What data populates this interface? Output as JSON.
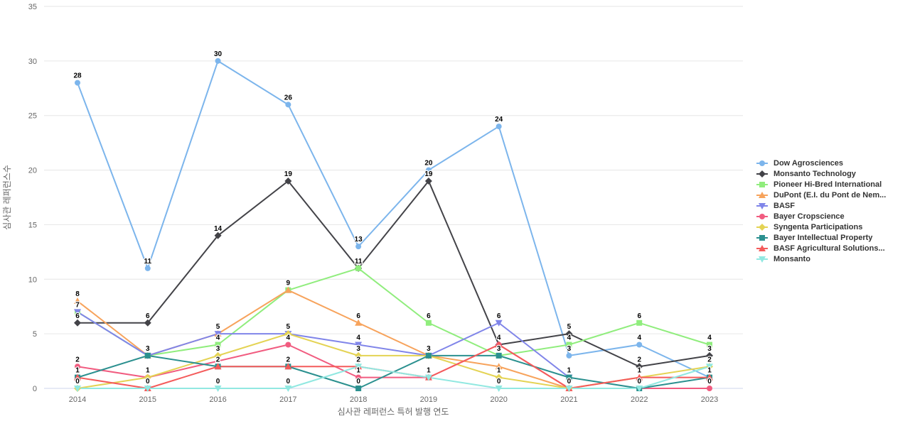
{
  "chart_data": {
    "type": "line",
    "title": "",
    "xlabel": "심사관 레퍼런스 특허 발행 연도",
    "ylabel": "심사관 레퍼런스수",
    "x_categories": [
      "2014",
      "2015",
      "2016",
      "2017",
      "2018",
      "2019",
      "2020",
      "2021",
      "2022",
      "2023"
    ],
    "ylim": [
      0,
      35
    ],
    "y_ticks": [
      "0",
      "5",
      "10",
      "15",
      "20",
      "25",
      "30",
      "35"
    ],
    "grid": true,
    "legend_position": "right",
    "colors": {
      "grid": "#e6e6e6",
      "axis_line": "#ccd6eb",
      "axis_text": "#666666",
      "data_label": "#000000",
      "legend_text": "#333333",
      "background": "#ffffff"
    },
    "series": [
      {
        "name": "Dow Agrosciences",
        "color": "#7cb5ec",
        "marker": "circle",
        "years": [
          2014,
          2015,
          2016,
          2017,
          2018,
          2019,
          2020,
          2021,
          2022,
          2023
        ],
        "values": [
          28,
          11,
          30,
          26,
          13,
          20,
          24,
          3,
          4,
          1
        ],
        "label_visible": [
          1,
          1,
          1,
          1,
          1,
          1,
          1,
          1,
          1,
          1
        ]
      },
      {
        "name": "Monsanto Technology",
        "color": "#434348",
        "marker": "diamond",
        "years": [
          2014,
          2015,
          2016,
          2017,
          2018,
          2019,
          2020,
          2021,
          2022,
          2023
        ],
        "values": [
          6,
          6,
          14,
          19,
          11,
          19,
          4,
          5,
          2,
          3
        ],
        "label_visible": [
          1,
          1,
          1,
          1,
          1,
          1,
          1,
          1,
          1,
          1
        ]
      },
      {
        "name": "Pioneer Hi-Bred International",
        "color": "#90ed7d",
        "marker": "square",
        "years": [
          2014,
          2015,
          2016,
          2017,
          2018,
          2019,
          2020,
          2021,
          2022,
          2023
        ],
        "values": [
          7,
          3,
          4,
          9,
          11,
          6,
          3,
          4,
          6,
          4
        ],
        "label_visible": [
          1,
          1,
          1,
          1,
          0,
          1,
          1,
          1,
          1,
          1
        ]
      },
      {
        "name": "DuPont (E.I. du Pont de Nem...",
        "color": "#f7a35c",
        "marker": "triangle",
        "years": [
          2014,
          2015,
          2016,
          2017,
          2018,
          2019,
          2020,
          2021
        ],
        "values": [
          8,
          3,
          5,
          9,
          6,
          3,
          2,
          0
        ],
        "label_visible": [
          1,
          0,
          1,
          0,
          1,
          1,
          0,
          1
        ]
      },
      {
        "name": "BASF",
        "color": "#8085e9",
        "marker": "triangle-down",
        "years": [
          2014,
          2015,
          2016,
          2017,
          2018,
          2019,
          2020,
          2021
        ],
        "values": [
          7,
          3,
          5,
          5,
          4,
          3,
          6,
          1
        ],
        "label_visible": [
          0,
          0,
          0,
          1,
          1,
          0,
          1,
          1
        ]
      },
      {
        "name": "Bayer Cropscience",
        "color": "#f15c80",
        "marker": "circle",
        "years": [
          2014,
          2015,
          2017,
          2018,
          2019,
          2020,
          2021,
          2022,
          2023
        ],
        "values": [
          2,
          1,
          4,
          1,
          1,
          4,
          0,
          0,
          0
        ],
        "label_visible": [
          1,
          1,
          1,
          1,
          1,
          0,
          0,
          1,
          1
        ]
      },
      {
        "name": "Syngenta Participations",
        "color": "#e4d354",
        "marker": "diamond",
        "years": [
          2014,
          2015,
          2016,
          2017,
          2018,
          2019,
          2020,
          2021,
          2023
        ],
        "values": [
          0,
          1,
          3,
          5,
          3,
          3,
          1,
          0,
          2
        ],
        "label_visible": [
          1,
          0,
          1,
          0,
          1,
          0,
          1,
          0,
          1
        ]
      },
      {
        "name": "Bayer Intellectual Property",
        "color": "#2b908f",
        "marker": "square",
        "years": [
          2014,
          2015,
          2016,
          2017,
          2018,
          2019,
          2020,
          2021,
          2022,
          2023
        ],
        "values": [
          1,
          3,
          2,
          2,
          0,
          3,
          3,
          1,
          0,
          1
        ],
        "label_visible": [
          1,
          0,
          1,
          1,
          1,
          0,
          0,
          0,
          0,
          0
        ]
      },
      {
        "name": "BASF Agricultural Solutions...",
        "color": "#f45b5b",
        "marker": "triangle",
        "years": [
          2014,
          2015,
          2016,
          2017,
          2018,
          2019,
          2020,
          2021,
          2022,
          2023
        ],
        "values": [
          1,
          0,
          2,
          2,
          2,
          1,
          4,
          0,
          1,
          1
        ],
        "label_visible": [
          0,
          1,
          0,
          0,
          1,
          0,
          0,
          0,
          1,
          0
        ]
      },
      {
        "name": "Monsanto",
        "color": "#91e8e1",
        "marker": "triangle-down",
        "years": [
          2014,
          2015,
          2016,
          2017,
          2018,
          2019,
          2020,
          2021,
          2022,
          2023
        ],
        "values": [
          0,
          0,
          0,
          0,
          2,
          1,
          0,
          0,
          0,
          2
        ],
        "label_visible": [
          0,
          0,
          1,
          1,
          0,
          0,
          1,
          0,
          0,
          0
        ]
      }
    ]
  }
}
